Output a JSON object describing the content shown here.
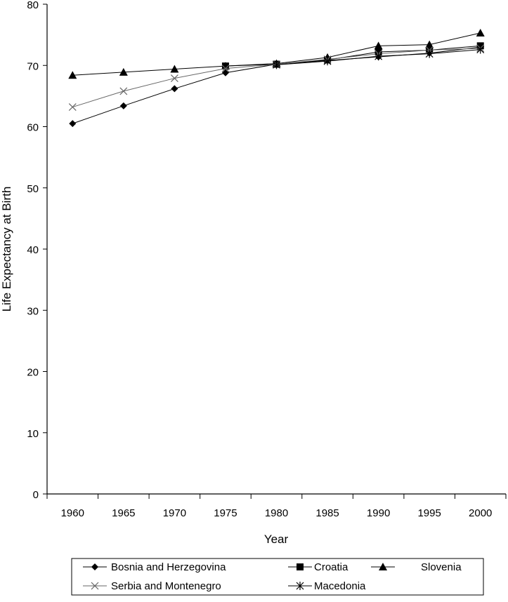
{
  "chart_data": {
    "type": "line",
    "title": "",
    "xlabel": "Year",
    "ylabel": "Life Expectancy at Birth",
    "ylim": [
      0,
      80
    ],
    "yticks": [
      0,
      10,
      20,
      30,
      40,
      50,
      60,
      70,
      80
    ],
    "categories": [
      "1960",
      "1965",
      "1970",
      "1975",
      "1980",
      "1985",
      "1990",
      "1995",
      "2000"
    ],
    "grid": false,
    "legend_position": "bottom",
    "series": [
      {
        "name": "Bosnia and Herzegovina",
        "marker": "diamond",
        "color": "#000000",
        "values": [
          60.5,
          63.4,
          66.2,
          68.8,
          70.2,
          70.8,
          71.4,
          72.0,
          73.0
        ]
      },
      {
        "name": "Croatia",
        "marker": "square",
        "color": "#000000",
        "values": [
          null,
          null,
          null,
          69.9,
          70.2,
          70.9,
          72.2,
          72.5,
          73.2
        ]
      },
      {
        "name": "Slovenia",
        "marker": "triangle",
        "color": "#000000",
        "values": [
          68.4,
          68.9,
          69.4,
          69.9,
          70.3,
          71.3,
          73.2,
          73.4,
          75.3
        ]
      },
      {
        "name": "Serbia and Montenegro",
        "marker": "x",
        "color": "#666666",
        "values": [
          63.2,
          65.8,
          67.9,
          69.5,
          70.2,
          71.0,
          71.9,
          72.5,
          72.8
        ]
      },
      {
        "name": "Macedonia",
        "marker": "star",
        "color": "#000000",
        "values": [
          null,
          null,
          null,
          null,
          70.1,
          70.7,
          71.5,
          71.9,
          72.6
        ]
      }
    ]
  }
}
